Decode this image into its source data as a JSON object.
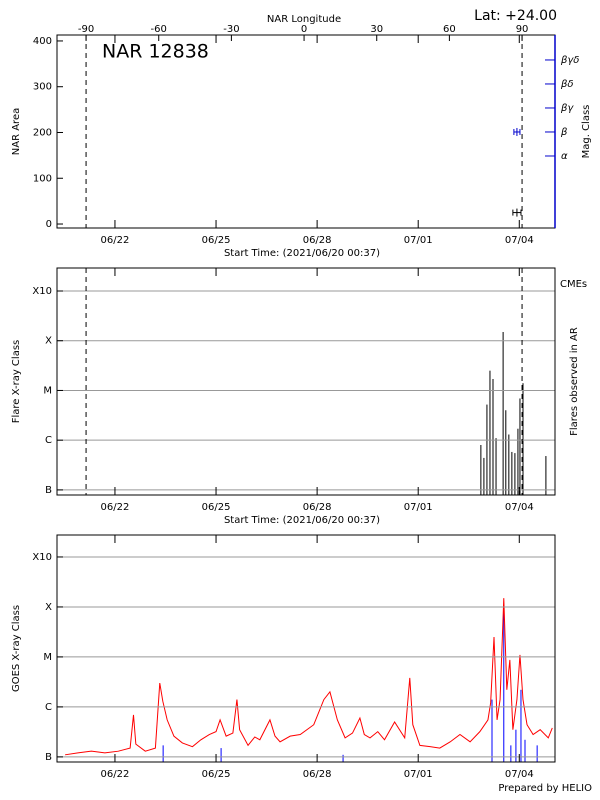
{
  "chart_data": [
    {
      "type": "scatter",
      "title": "NAR 12838",
      "annotation": "Lat: +24.00",
      "x2label": "NAR Longitude",
      "x2lim": [
        -102,
        103.6
      ],
      "x2ticks": [
        -90,
        -60,
        -30,
        0,
        30,
        60,
        90
      ],
      "xlabel": "Start Time: (2021/06/20 00:37)",
      "xlim": [
        0.28,
        15.06
      ],
      "xticks": [
        {
          "value": 2,
          "label": "06/22"
        },
        {
          "value": 5,
          "label": "06/25"
        },
        {
          "value": 8,
          "label": "06/28"
        },
        {
          "value": 11,
          "label": "07/01"
        },
        {
          "value": 14,
          "label": "07/04"
        }
      ],
      "ylabel": "NAR Area",
      "ylim": [
        -8.7,
        413
      ],
      "yticks": [
        0,
        100,
        200,
        300,
        400
      ],
      "y2label": "Mag. Class",
      "y2lim": [
        0,
        8.04
      ],
      "y2color": "#0000cc",
      "y2ticks": [
        {
          "value": 3,
          "label": "α"
        },
        {
          "value": 4,
          "label": "β"
        },
        {
          "value": 5,
          "label": "βγ"
        },
        {
          "value": 6,
          "label": "βδ"
        },
        {
          "value": 7,
          "label": "βγδ"
        }
      ],
      "grid": false,
      "series": [
        {
          "color": "#000000",
          "x": [
            13.93
          ],
          "x_err": [
            0.12
          ],
          "values": [
            25
          ]
        },
        {
          "color": "#0000cc",
          "axis": "y2",
          "x": [
            13.93
          ],
          "x_err": [
            0.09
          ],
          "values": [
            4
          ]
        }
      ]
    },
    {
      "type": "impulse",
      "xlabel": "Start Time: (2021/06/20 00:37)",
      "xlim": [
        0.28,
        15.06
      ],
      "xticks": [
        {
          "value": 2,
          "label": "06/22"
        },
        {
          "value": 5,
          "label": "06/25"
        },
        {
          "value": 8,
          "label": "06/28"
        },
        {
          "value": 11,
          "label": "07/01"
        },
        {
          "value": 14,
          "label": "07/04"
        }
      ],
      "ylabel": "Flare X-ray Class",
      "y2label": "Flares observed in AR",
      "annotation": "CMEs",
      "annotation_color": "#cc0000",
      "log_scale": true,
      "ylim": [
        7.9e-08,
        0.0029
      ],
      "yticks": [
        {
          "value": 1e-07,
          "label": "B"
        },
        {
          "value": 1e-06,
          "label": "C"
        },
        {
          "value": 1e-05,
          "label": "M"
        },
        {
          "value": 0.0001,
          "label": "X"
        },
        {
          "value": 0.001,
          "label": "X10"
        }
      ],
      "grid": true,
      "series": [
        {
          "color": "#000000",
          "x": [
            12.86,
            12.95,
            13.04,
            13.13,
            13.22,
            13.31,
            13.52,
            13.6,
            13.69,
            13.78,
            13.87,
            13.96,
            14.02,
            14.11,
            14.79
          ],
          "values": [
            8e-07,
            4.4e-07,
            5.2e-06,
            2.5e-05,
            1.7e-05,
            1.1e-06,
            0.00015,
            4e-06,
            1.3e-06,
            5.8e-07,
            5.5e-07,
            1.7e-06,
            6.9e-06,
            1.4e-05,
            4.8e-07
          ]
        }
      ]
    },
    {
      "type": "line",
      "xlim": [
        0.28,
        15.06
      ],
      "xticks": [
        {
          "value": 2,
          "label": "06/22"
        },
        {
          "value": 5,
          "label": "06/25"
        },
        {
          "value": 8,
          "label": "06/28"
        },
        {
          "value": 11,
          "label": "07/01"
        },
        {
          "value": 14,
          "label": "07/04"
        }
      ],
      "ylabel": "GOES X-ray Class",
      "log_scale": true,
      "ylim": [
        7.9e-08,
        0.00275
      ],
      "yticks": [
        {
          "value": 1e-07,
          "label": "B"
        },
        {
          "value": 1e-06,
          "label": "C"
        },
        {
          "value": 1e-05,
          "label": "M"
        },
        {
          "value": 0.0001,
          "label": "X"
        },
        {
          "value": 0.001,
          "label": "X10"
        }
      ],
      "grid": true,
      "series": [
        {
          "color": "#0000ff",
          "style": "impulse",
          "x": [
            3.43,
            5.15,
            8.77,
            13.19,
            13.54,
            13.75,
            13.9,
            14.05,
            14.17,
            14.53
          ],
          "values": [
            1.7e-07,
            1.5e-07,
            1.1e-07,
            1.4e-06,
            0.00011,
            1.7e-07,
            3.5e-07,
            2.2e-06,
            2.2e-07,
            1.7e-07
          ]
        },
        {
          "color": "#ff0000",
          "style": "line",
          "x": [
            0.52,
            0.9,
            1.3,
            1.7,
            2.1,
            2.45,
            2.55,
            2.62,
            2.9,
            3.2,
            3.33,
            3.42,
            3.55,
            3.75,
            4.0,
            4.3,
            4.55,
            4.8,
            5.0,
            5.12,
            5.3,
            5.5,
            5.62,
            5.7,
            5.95,
            6.15,
            6.3,
            6.6,
            6.75,
            6.9,
            7.2,
            7.5,
            7.9,
            8.2,
            8.38,
            8.6,
            8.83,
            9.05,
            9.27,
            9.4,
            9.57,
            9.8,
            10.0,
            10.3,
            10.6,
            10.75,
            10.84,
            11.05,
            11.35,
            11.64,
            11.95,
            12.24,
            12.54,
            12.83,
            13.07,
            13.15,
            13.25,
            13.34,
            13.43,
            13.54,
            13.63,
            13.72,
            13.81,
            13.93,
            14.02,
            14.11,
            14.23,
            14.41,
            14.62,
            14.86,
            14.98
          ],
          "values": [
            1.1e-07,
            1.2e-07,
            1.3e-07,
            1.2e-07,
            1.3e-07,
            1.5e-07,
            6.9e-07,
            1.8e-07,
            1.3e-07,
            1.5e-07,
            3e-06,
            1.3e-06,
            5.5e-07,
            2.6e-07,
            1.9e-07,
            1.6e-07,
            2.2e-07,
            2.8e-07,
            3.2e-07,
            5.5e-07,
            2.6e-07,
            3e-07,
            1.4e-06,
            3.5e-07,
            1.7e-07,
            2.5e-07,
            2.2e-07,
            5.5e-07,
            2.6e-07,
            2e-07,
            2.6e-07,
            2.8e-07,
            4.4e-07,
            1.4e-06,
            2e-06,
            5.5e-07,
            2.4e-07,
            3e-07,
            6e-07,
            2.8e-07,
            2.4e-07,
            3.2e-07,
            2.2e-07,
            5e-07,
            2.4e-07,
            3.8e-06,
            4.4e-07,
            1.7e-07,
            1.6e-07,
            1.5e-07,
            2e-07,
            2.8e-07,
            2e-07,
            3.2e-07,
            5.5e-07,
            1.2e-06,
            2.5e-05,
            5.5e-07,
            1.4e-06,
            0.00015,
            2.2e-06,
            8.7e-06,
            3.5e-07,
            1.4e-06,
            1.1e-05,
            1.4e-06,
            4.4e-07,
            2.8e-07,
            3.5e-07,
            2.4e-07,
            3.8e-07
          ]
        }
      ]
    }
  ],
  "footer": "Prepared by HELIO"
}
